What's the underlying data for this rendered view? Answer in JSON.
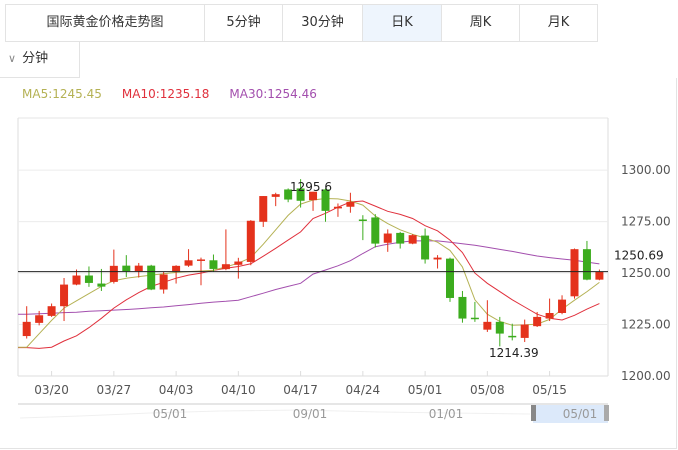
{
  "tabs": [
    {
      "label": "国际黄金价格走势图",
      "active": false
    },
    {
      "label": "5分钟",
      "active": false
    },
    {
      "label": "30分钟",
      "active": false
    },
    {
      "label": "日K",
      "active": true
    },
    {
      "label": "周K",
      "active": false
    },
    {
      "label": "月K",
      "active": false
    }
  ],
  "interval_dropdown": {
    "label": "分钟",
    "icon": "chevron-down-icon"
  },
  "legend": {
    "ma5": "MA5:1245.45",
    "ma10": "MA10:1235.18",
    "ma30": "MA30:1254.46"
  },
  "colors": {
    "up": "#e4321c",
    "down": "#3cac1e",
    "ma5": "#b5b255",
    "ma10": "#e0303c",
    "ma30": "#a34fae",
    "current_line": "#222222",
    "nav_selected": "#dce9fa"
  },
  "chart_data": {
    "type": "candlestick",
    "ylim": [
      1200,
      1300
    ],
    "y_ticks": [
      "1200.00",
      "1225.00",
      "1250.00",
      "1275.00",
      "1300.00"
    ],
    "x_tick_labels": [
      "03/20",
      "03/27",
      "04/03",
      "04/10",
      "04/17",
      "04/24",
      "05/01",
      "05/08",
      "05/15"
    ],
    "dates": [
      "03/16",
      "03/17",
      "03/20",
      "03/21",
      "03/22",
      "03/23",
      "03/24",
      "03/27",
      "03/28",
      "03/29",
      "03/30",
      "03/31",
      "04/03",
      "04/04",
      "04/05",
      "04/06",
      "04/07",
      "04/10",
      "04/11",
      "04/12",
      "04/13",
      "04/14",
      "04/17",
      "04/18",
      "04/19",
      "04/20",
      "04/21",
      "04/24",
      "04/25",
      "04/26",
      "04/27",
      "04/28",
      "05/01",
      "05/02",
      "05/03",
      "05/04",
      "05/05",
      "05/08",
      "05/09",
      "05/10",
      "05/11",
      "05/12",
      "05/15",
      "05/16",
      "05/17",
      "05/18",
      "05/19"
    ],
    "ohlc": [
      [
        1219.4,
        1233.9,
        1218.2,
        1226.3
      ],
      [
        1225.8,
        1231.6,
        1224.6,
        1229.5
      ],
      [
        1229.2,
        1235.2,
        1228.7,
        1233.9
      ],
      [
        1233.9,
        1247.6,
        1226.7,
        1244.4
      ],
      [
        1244.4,
        1251.7,
        1244.1,
        1248.8
      ],
      [
        1248.8,
        1253.2,
        1243.3,
        1245.2
      ],
      [
        1244.9,
        1252.0,
        1241.3,
        1243.4
      ],
      [
        1245.7,
        1261.4,
        1244.9,
        1253.5
      ],
      [
        1253.6,
        1258.7,
        1248.1,
        1250.9
      ],
      [
        1250.9,
        1254.9,
        1247.8,
        1253.6
      ],
      [
        1253.6,
        1254.0,
        1241.7,
        1242.0
      ],
      [
        1242.0,
        1250.6,
        1240.0,
        1249.3
      ],
      [
        1250.9,
        1253.8,
        1244.9,
        1253.5
      ],
      [
        1253.6,
        1261.6,
        1253.0,
        1256.2
      ],
      [
        1255.9,
        1257.5,
        1244.1,
        1256.6
      ],
      [
        1256.2,
        1259.0,
        1250.6,
        1252.0
      ],
      [
        1251.9,
        1271.2,
        1251.4,
        1254.3
      ],
      [
        1254.0,
        1257.4,
        1247.3,
        1255.6
      ],
      [
        1255.4,
        1275.7,
        1253.8,
        1275.4
      ],
      [
        1274.9,
        1287.4,
        1272.4,
        1287.4
      ],
      [
        1287.0,
        1289.0,
        1282.5,
        1288.3
      ],
      [
        1290.6,
        1291.1,
        1284.4,
        1285.7
      ],
      [
        1291.1,
        1295.6,
        1281.8,
        1285.1
      ],
      [
        1285.4,
        1289.5,
        1280.2,
        1289.5
      ],
      [
        1290.6,
        1291.1,
        1274.9,
        1280.2
      ],
      [
        1281.4,
        1283.8,
        1277.3,
        1282.2
      ],
      [
        1282.2,
        1289.0,
        1279.3,
        1284.6
      ],
      [
        1276.0,
        1278.1,
        1266.0,
        1275.7
      ],
      [
        1277.0,
        1278.6,
        1262.4,
        1264.3
      ],
      [
        1264.7,
        1271.2,
        1260.3,
        1269.2
      ],
      [
        1269.5,
        1270.0,
        1261.9,
        1264.3
      ],
      [
        1264.3,
        1268.9,
        1264.0,
        1268.4
      ],
      [
        1268.2,
        1271.6,
        1254.6,
        1256.6
      ],
      [
        1256.6,
        1258.7,
        1252.2,
        1257.5
      ],
      [
        1257.0,
        1257.5,
        1236.0,
        1237.9
      ],
      [
        1238.4,
        1241.3,
        1225.9,
        1227.9
      ],
      [
        1228.3,
        1236.0,
        1226.3,
        1227.9
      ],
      [
        1222.5,
        1236.8,
        1221.4,
        1226.3
      ],
      [
        1226.3,
        1228.7,
        1214.39,
        1220.6
      ],
      [
        1219.5,
        1225.4,
        1217.3,
        1219.0
      ],
      [
        1218.5,
        1227.4,
        1216.5,
        1225.0
      ],
      [
        1224.2,
        1231.1,
        1223.8,
        1228.7
      ],
      [
        1227.9,
        1237.6,
        1226.7,
        1230.6
      ],
      [
        1230.6,
        1239.2,
        1230.0,
        1237.1
      ],
      [
        1238.7,
        1261.9,
        1237.6,
        1261.6
      ],
      [
        1261.6,
        1265.6,
        1246.5,
        1246.8
      ],
      [
        1246.8,
        1251.7,
        1246.5,
        1250.69
      ]
    ],
    "ma5": [
      1214,
      1220.5,
      1227,
      1233,
      1236.5,
      1240,
      1243.5,
      1246.3,
      1247.5,
      1248.3,
      1249,
      1249.7,
      1250.3,
      1250.7,
      1251,
      1251.4,
      1253,
      1254.8,
      1257.5,
      1264,
      1271,
      1278,
      1283.5,
      1285.5,
      1286.2,
      1286,
      1285,
      1283,
      1277.7,
      1274,
      1271,
      1268.8,
      1267,
      1265,
      1261,
      1253,
      1237,
      1230,
      1226.5,
      1224.6,
      1224.8,
      1225.2,
      1227.5,
      1232.5,
      1236.8,
      1241,
      1245.45
    ],
    "ma10": [
      1213.8,
      1213.4,
      1214,
      1217,
      1219.5,
      1223.5,
      1228,
      1233,
      1237,
      1240.5,
      1243.5,
      1245.5,
      1247.5,
      1249,
      1250,
      1251.3,
      1252.3,
      1253.2,
      1254.5,
      1258.2,
      1262,
      1266,
      1270,
      1276.5,
      1279,
      1282,
      1284.5,
      1285,
      1282.5,
      1280,
      1278.5,
      1276.5,
      1273,
      1270.5,
      1266,
      1260,
      1250,
      1245,
      1241,
      1237,
      1233.5,
      1230,
      1228,
      1227.2,
      1229.5,
      1232.5,
      1235.18
    ],
    "ma30": [
      1230,
      1230.2,
      1230.5,
      1230.8,
      1231,
      1231.4,
      1231.7,
      1232,
      1232.3,
      1232.7,
      1233.1,
      1233.5,
      1234.1,
      1234.7,
      1235.3,
      1235.9,
      1236.3,
      1236.8,
      1238.5,
      1240.2,
      1242,
      1243.5,
      1245,
      1249.5,
      1251.5,
      1253.5,
      1256,
      1259.5,
      1262.8,
      1264,
      1265,
      1265.6,
      1265.6,
      1265.6,
      1265,
      1264.2,
      1263.5,
      1262.5,
      1261.5,
      1260.5,
      1259.4,
      1258.3,
      1257.5,
      1256.8,
      1256.2,
      1255.3,
      1254.46
    ],
    "current_price": {
      "value": 1250.69,
      "label": "1250.69"
    },
    "annotations": {
      "high": "1295.6",
      "low": "1214.39"
    },
    "navigator": {
      "labels": [
        "05/01",
        "09/01",
        "01/01",
        "05/01"
      ]
    }
  }
}
